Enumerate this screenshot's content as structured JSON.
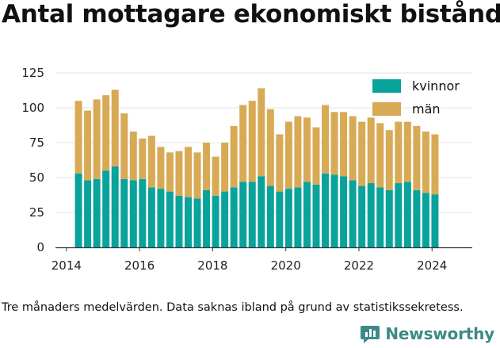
{
  "title": "Antal mottagare ekonomiskt bistånd",
  "note": "Tre månaders medelvärden. Data saknas ibland på grund av statistikssekretess.",
  "brand": {
    "name": "Newsworthy",
    "icon": "newsworthy-logo-icon"
  },
  "colors": {
    "kvinnor": "#0aa39b",
    "man": "#d8aa55",
    "axis": "#333333",
    "grid": "#e6e6e6",
    "brand": "#3c8a86"
  },
  "chart_data": {
    "type": "bar",
    "stacked": true,
    "x_unit": "year",
    "xlim": [
      2013.7,
      2025.1
    ],
    "ylim": [
      0,
      125
    ],
    "y_ticks": [
      0,
      25,
      50,
      75,
      100,
      125
    ],
    "x_ticks": [
      2014,
      2016,
      2018,
      2020,
      2022,
      2024
    ],
    "grid": "horizontal",
    "legend_position": "top-right",
    "xlabel": "",
    "ylabel": "",
    "x": [
      2014.33,
      2014.58,
      2014.83,
      2015.08,
      2015.33,
      2015.58,
      2015.83,
      2016.08,
      2016.33,
      2016.58,
      2016.83,
      2017.08,
      2017.33,
      2017.58,
      2017.83,
      2018.08,
      2018.33,
      2018.58,
      2018.83,
      2019.08,
      2019.33,
      2019.58,
      2019.83,
      2020.08,
      2020.33,
      2020.58,
      2020.83,
      2021.08,
      2021.33,
      2021.58,
      2021.83,
      2022.08,
      2022.33,
      2022.58,
      2022.83,
      2023.08,
      2023.33,
      2023.58,
      2023.83,
      2024.08
    ],
    "series": [
      {
        "name": "kvinnor",
        "values": [
          53,
          48,
          49,
          55,
          58,
          49,
          48,
          49,
          43,
          42,
          40,
          37,
          36,
          35,
          41,
          37,
          40,
          43,
          47,
          47,
          51,
          44,
          40,
          42,
          43,
          47,
          45,
          53,
          52,
          51,
          48,
          44,
          46,
          43,
          41,
          46,
          47,
          41,
          39,
          38
        ]
      },
      {
        "name": "män",
        "values": [
          52,
          50,
          57,
          54,
          55,
          47,
          35,
          29,
          37,
          30,
          28,
          32,
          36,
          33,
          34,
          28,
          35,
          44,
          55,
          58,
          63,
          55,
          41,
          48,
          51,
          46,
          41,
          49,
          45,
          46,
          46,
          46,
          47,
          46,
          43,
          44,
          43,
          46,
          44,
          43
        ]
      }
    ]
  }
}
